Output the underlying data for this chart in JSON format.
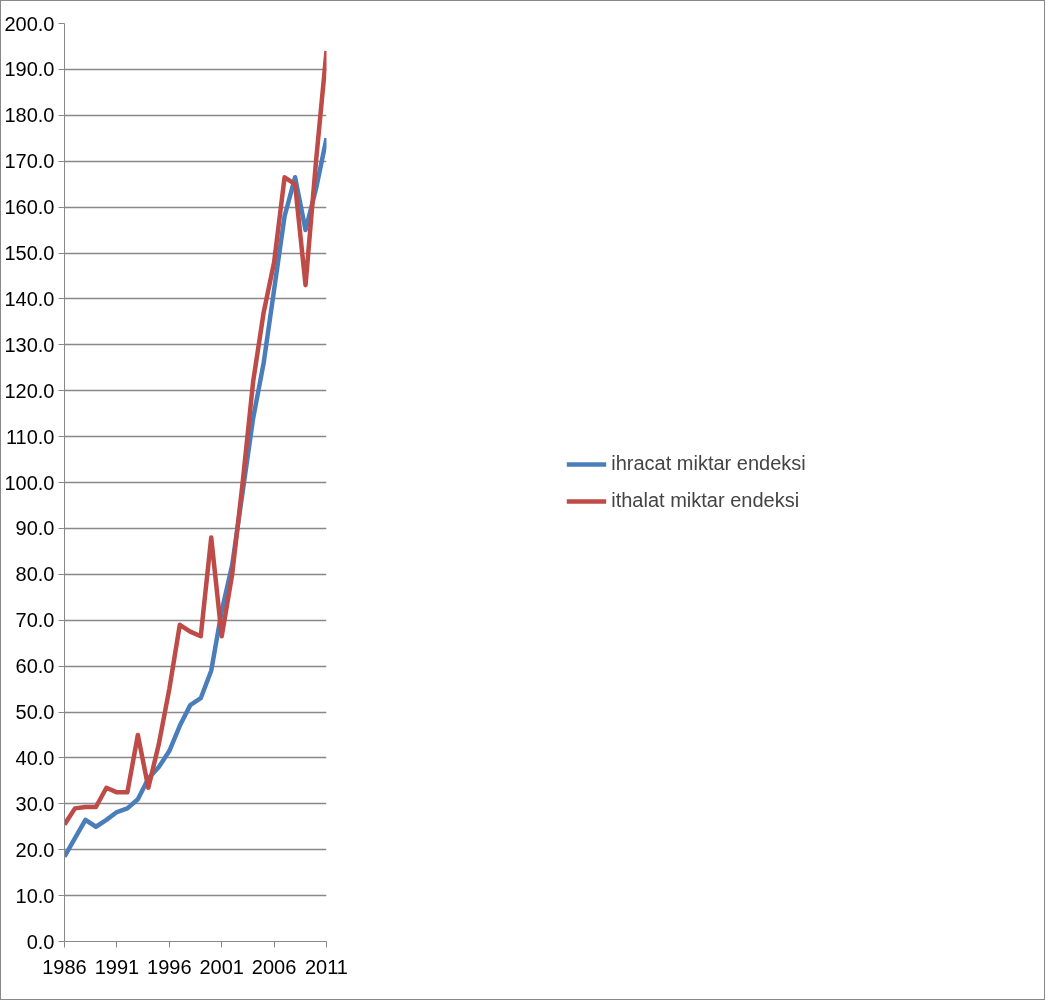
{
  "chart_data": {
    "type": "line",
    "x": [
      1986,
      1987,
      1988,
      1989,
      1990,
      1991,
      1992,
      1993,
      1994,
      1995,
      1996,
      1997,
      1998,
      1999,
      2000,
      2001,
      2002,
      2003,
      2004,
      2005,
      2006,
      2007,
      2008,
      2009,
      2010,
      2011
    ],
    "series": [
      {
        "name": "ihracat miktar endeksi",
        "color": "#4a7ebb",
        "values": [
          18.5,
          22.5,
          26.5,
          25,
          26.5,
          28.2,
          29,
          31,
          35.5,
          38,
          41.5,
          47,
          51.5,
          53,
          59,
          72,
          82,
          98,
          114,
          126,
          142,
          158,
          166.5,
          155,
          164,
          175
        ]
      },
      {
        "name": "ithalat miktar endeksi",
        "color": "#be4b48",
        "values": [
          25.5,
          29,
          29.3,
          29.3,
          33.5,
          32.5,
          32.5,
          45,
          33.5,
          43,
          55,
          69,
          67.5,
          66.5,
          88,
          66.5,
          80,
          100,
          122,
          137,
          148,
          166.5,
          165,
          143,
          170,
          194
        ]
      }
    ],
    "xlim": [
      1986,
      2011
    ],
    "xticks": [
      1986,
      1991,
      1996,
      2001,
      2006,
      2011
    ],
    "ylim": [
      0,
      200
    ],
    "yticks": [
      {
        "value": 0,
        "label": "0.0"
      },
      {
        "value": 10,
        "label": "10.0"
      },
      {
        "value": 20,
        "label": "20.0"
      },
      {
        "value": 30,
        "label": "30.0"
      },
      {
        "value": 40,
        "label": "40.0"
      },
      {
        "value": 50,
        "label": "50.0"
      },
      {
        "value": 60,
        "label": "60.0"
      },
      {
        "value": 70,
        "label": "70.0"
      },
      {
        "value": 80,
        "label": "80.0"
      },
      {
        "value": 90,
        "label": "90.0"
      },
      {
        "value": 100,
        "label": "100.0"
      },
      {
        "value": 110,
        "label": "110.0"
      },
      {
        "value": 120,
        "label": "120.0"
      },
      {
        "value": 130,
        "label": "130.0"
      },
      {
        "value": 140,
        "label": "140.0"
      },
      {
        "value": 150,
        "label": "150.0"
      },
      {
        "value": 160,
        "label": "160.0"
      },
      {
        "value": 170,
        "label": "170.0"
      },
      {
        "value": 180,
        "label": "180.0"
      },
      {
        "value": 190,
        "label": "190.0"
      },
      {
        "value": 200,
        "label": "200.0"
      }
    ],
    "grid": "y",
    "legend": "right",
    "marker": "none",
    "line_style": "solid"
  }
}
